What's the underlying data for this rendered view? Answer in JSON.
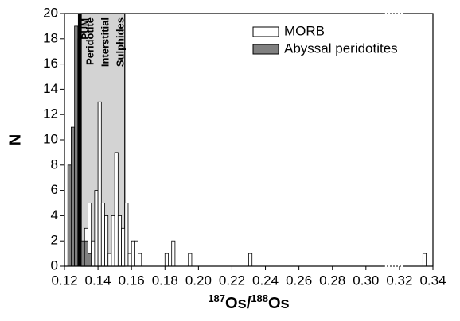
{
  "chart_data": {
    "type": "histogram",
    "xlabel": [
      "187",
      "Os/",
      "188",
      "Os"
    ],
    "ylabel": "N",
    "bins": [
      0.122,
      0.124,
      0.126,
      0.128,
      0.13,
      0.132,
      0.134,
      0.136,
      0.138,
      0.14,
      0.142,
      0.144,
      0.146,
      0.148,
      0.15,
      0.152,
      0.154,
      0.156,
      0.158,
      0.16,
      0.162,
      0.164,
      0.166,
      0.168,
      0.17,
      0.172,
      0.174,
      0.176,
      0.178,
      0.18,
      0.182,
      0.184,
      0.186,
      0.188,
      0.19,
      0.192,
      0.194,
      0.196,
      0.198,
      0.2,
      0.202,
      0.204,
      0.206,
      0.208,
      0.21,
      0.212,
      0.214,
      0.216,
      0.218,
      0.22,
      0.222,
      0.224,
      0.226,
      0.228,
      0.23,
      0.232,
      0.234,
      0.236,
      0.238,
      0.24,
      0.242,
      0.244,
      0.246,
      0.248,
      0.25,
      0.252,
      0.254,
      0.256,
      0.258,
      0.26,
      0.262,
      0.264,
      0.266,
      0.268,
      0.27,
      0.272,
      0.274,
      0.276,
      0.278,
      0.28,
      0.282,
      0.284,
      0.286,
      0.288,
      0.29,
      0.292,
      0.294,
      0.296,
      0.298,
      0.3,
      0.302,
      0.304,
      0.306,
      0.308,
      0.31,
      0.312,
      0.314,
      0.316,
      0.318,
      0.32,
      0.322,
      0.324,
      0.326,
      0.328,
      0.33,
      0.332,
      0.334,
      0.336
    ],
    "series": [
      {
        "name": "MORB",
        "color": "#ffffff",
        "values": [
          0,
          1,
          0,
          0,
          0,
          3,
          5,
          2,
          6,
          13,
          5,
          4,
          1,
          4,
          9,
          4,
          3,
          5,
          1,
          2,
          2,
          1,
          0,
          0,
          0,
          0,
          0,
          0,
          0,
          1,
          0,
          2,
          0,
          0,
          0,
          0,
          1,
          0,
          0,
          0,
          0,
          0,
          0,
          0,
          0,
          0,
          0,
          0,
          0,
          0,
          0,
          0,
          0,
          0,
          1,
          0,
          0,
          0,
          0,
          0,
          0,
          0,
          0,
          0,
          0,
          0,
          0,
          0,
          0,
          0,
          0,
          0,
          0,
          0,
          0,
          0,
          0,
          0,
          0,
          0,
          0,
          0,
          0,
          0,
          0,
          0,
          0,
          0,
          0,
          0,
          0,
          0,
          0,
          0,
          0,
          0,
          0,
          0,
          0,
          0,
          0,
          0,
          0,
          0,
          0,
          0,
          1
        ]
      },
      {
        "name": "Abyssal peridotites",
        "color": "#808080",
        "values": [
          8,
          11,
          19,
          18,
          2,
          2,
          1,
          0,
          0,
          0,
          0,
          0,
          0,
          0,
          0,
          0,
          0,
          0,
          0,
          0,
          0,
          0,
          0,
          0,
          0,
          0,
          0,
          0,
          0,
          0,
          0,
          0,
          0,
          0,
          0,
          0,
          0,
          0,
          0,
          0,
          0,
          0,
          0,
          0,
          0,
          0,
          0,
          0,
          0,
          0,
          0,
          0,
          0,
          0,
          0,
          0,
          0,
          0,
          0,
          0,
          0,
          0,
          0,
          0,
          0,
          0,
          0,
          0,
          0,
          0,
          0,
          0,
          0,
          0,
          0,
          0,
          0,
          0,
          0,
          0,
          0,
          0,
          0,
          0,
          0,
          0,
          0,
          0,
          0,
          0,
          0,
          0,
          0,
          0,
          0,
          0,
          0,
          0,
          0,
          0,
          0,
          0,
          0,
          0,
          0,
          0,
          0
        ]
      }
    ],
    "shaded_region": {
      "xlim": [
        0.13,
        0.156
      ],
      "color": "#d3d3d3",
      "labels": [
        "Peridotite",
        "Interstitial",
        "Sulphides"
      ]
    },
    "reference_line": {
      "x": 0.129,
      "label": "PUM",
      "color": "#000000"
    },
    "xlim": [
      0.12,
      0.34
    ],
    "xticks": [
      0.12,
      0.14,
      0.16,
      0.18,
      {
        "value": 0.2,
        "label": "0.20"
      },
      0.22,
      0.24,
      0.26,
      0.28,
      {
        "value": 0.3,
        "label": "0.30"
      },
      0.32,
      0.34
    ],
    "ylim": [
      0,
      20
    ],
    "yticks": [
      0,
      2,
      4,
      6,
      8,
      10,
      12,
      14,
      16,
      18,
      20
    ],
    "legend": "upper right"
  }
}
